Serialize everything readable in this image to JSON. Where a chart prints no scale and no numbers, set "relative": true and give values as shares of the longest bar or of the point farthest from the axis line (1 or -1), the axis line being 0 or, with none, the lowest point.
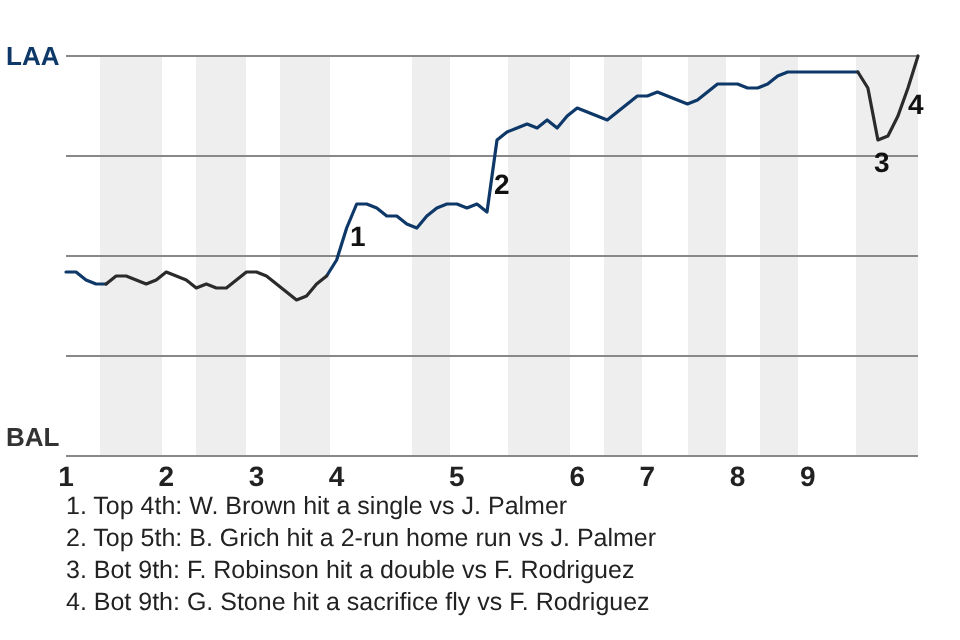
{
  "chart_data": {
    "type": "line",
    "relative": true,
    "categories": [
      "1",
      null,
      null,
      null,
      null,
      null,
      null,
      null,
      null,
      null,
      "2",
      null,
      null,
      null,
      null,
      null,
      null,
      null,
      null,
      "3",
      null,
      null,
      null,
      null,
      null,
      null,
      null,
      "4",
      null,
      null,
      null,
      null,
      null,
      null,
      null,
      null,
      null,
      null,
      null,
      "5",
      null,
      null,
      null,
      null,
      null,
      null,
      null,
      null,
      null,
      null,
      null,
      "6",
      null,
      null,
      null,
      null,
      null,
      null,
      "7",
      null,
      null,
      null,
      null,
      null,
      null,
      null,
      null,
      "8",
      null,
      null,
      null,
      null,
      null,
      null,
      "9",
      null,
      null,
      null,
      null,
      null,
      null,
      null,
      null,
      null,
      null,
      null
    ],
    "series": [
      {
        "color": "#0d3868",
        "values": [
          0.46,
          0.46,
          0.44,
          0.43,
          0.43,
          null,
          null,
          null,
          null,
          null,
          null,
          null,
          null,
          null,
          null,
          null,
          null,
          null,
          null,
          null,
          null,
          null,
          null,
          null,
          null,
          null,
          0.45,
          0.49,
          0.57,
          0.63,
          0.63,
          0.62,
          0.6,
          0.6,
          0.58,
          0.57,
          0.6,
          0.62,
          0.63,
          0.63,
          0.62,
          0.63,
          0.61,
          0.79,
          0.81,
          0.82,
          0.83,
          0.82,
          0.84,
          0.82,
          0.85,
          0.87,
          0.86,
          0.85,
          0.84,
          0.86,
          0.88,
          0.9,
          0.9,
          0.91,
          0.9,
          0.89,
          0.88,
          0.89,
          0.91,
          0.93,
          0.93,
          0.93,
          0.92,
          0.92,
          0.93,
          0.95,
          0.96,
          0.96,
          0.96,
          0.96,
          0.96,
          0.96,
          0.96,
          0.96,
          null,
          null,
          null,
          null,
          null,
          null
        ]
      },
      {
        "color": "#2b2b2b",
        "values": [
          null,
          null,
          null,
          null,
          0.43,
          0.45,
          0.45,
          0.44,
          0.43,
          0.44,
          0.46,
          0.45,
          0.44,
          0.42,
          0.43,
          0.42,
          0.42,
          0.44,
          0.46,
          0.46,
          0.45,
          0.43,
          0.41,
          0.39,
          0.4,
          0.43,
          0.45,
          null,
          null,
          null,
          null,
          null,
          null,
          null,
          null,
          null,
          null,
          null,
          null,
          null,
          null,
          null,
          null,
          null,
          null,
          null,
          null,
          null,
          null,
          null,
          null,
          null,
          null,
          null,
          null,
          null,
          null,
          null,
          null,
          null,
          null,
          null,
          null,
          null,
          null,
          null,
          null,
          null,
          null,
          null,
          null,
          null,
          null,
          null,
          null,
          null,
          null,
          null,
          null,
          0.96,
          0.92,
          0.79,
          0.8,
          0.85,
          0.92,
          1
        ]
      }
    ],
    "marker": "none",
    "line_style": "solid",
    "ref_lines": [
      {
        "axis": "y",
        "value": 0.25,
        "color": "#888888"
      },
      {
        "axis": "y",
        "value": 0.5,
        "color": "#888888"
      },
      {
        "axis": "y",
        "value": 0.75,
        "color": "#888888"
      },
      {
        "axis": "y",
        "value": 1,
        "color": "#888888"
      }
    ],
    "annotations": [
      "LAA",
      "BAL",
      "1",
      "2",
      "3",
      "4",
      "1. Top 4th: W. Brown hit a single vs J. Palmer",
      "2. Top 5th: B. Grich hit a 2-run home run vs J. Palmer",
      "3. Bot 9th: F. Robinson hit a double vs F. Rodriguez",
      "4. Bot 9th: G. Stone hit a sacrifice fly vs F. Rodriguez"
    ]
  }
}
